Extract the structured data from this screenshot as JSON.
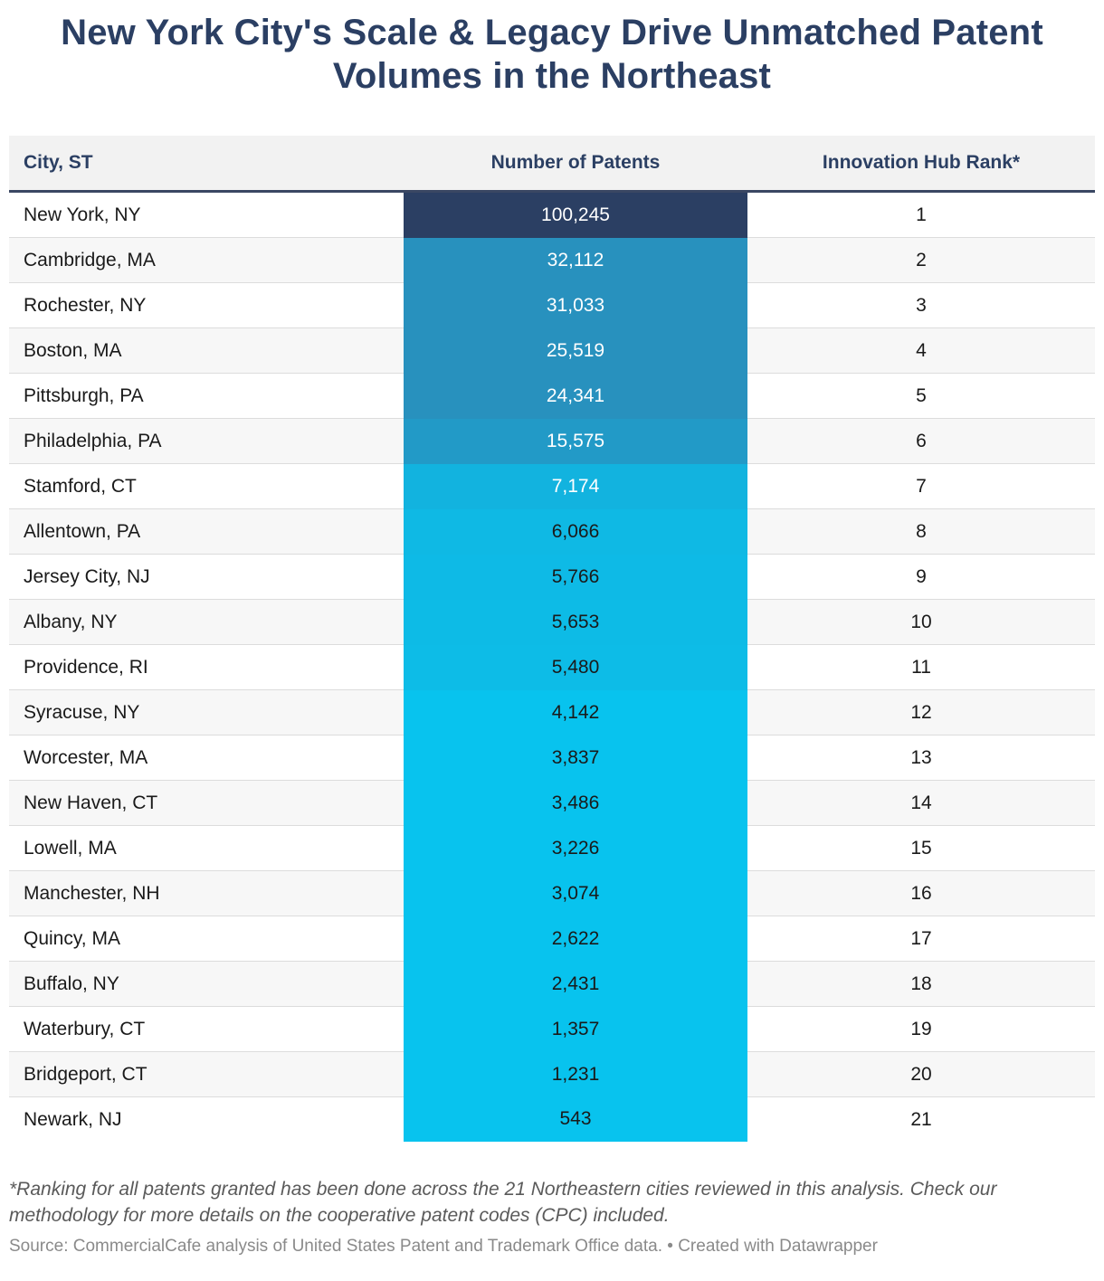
{
  "title": "New York City's Scale & Legacy Drive Unmatched Patent Volumes in the Northeast",
  "chart_data": {
    "type": "table",
    "columns": [
      "City, ST",
      "Number of Patents",
      "Innovation Hub Rank*"
    ],
    "rows": [
      {
        "city": "New York, NY",
        "patents": 100245,
        "patents_label": "100,245",
        "rank": "1"
      },
      {
        "city": "Cambridge, MA",
        "patents": 32112,
        "patents_label": "32,112",
        "rank": "2"
      },
      {
        "city": "Rochester, NY",
        "patents": 31033,
        "patents_label": "31,033",
        "rank": "3"
      },
      {
        "city": "Boston, MA",
        "patents": 25519,
        "patents_label": "25,519",
        "rank": "4"
      },
      {
        "city": "Pittsburgh, PA",
        "patents": 24341,
        "patents_label": "24,341",
        "rank": "5"
      },
      {
        "city": "Philadelphia, PA",
        "patents": 15575,
        "patents_label": "15,575",
        "rank": "6"
      },
      {
        "city": "Stamford, CT",
        "patents": 7174,
        "patents_label": "7,174",
        "rank": "7"
      },
      {
        "city": "Allentown, PA",
        "patents": 6066,
        "patents_label": "6,066",
        "rank": "8"
      },
      {
        "city": "Jersey City, NJ",
        "patents": 5766,
        "patents_label": "5,766",
        "rank": "9"
      },
      {
        "city": "Albany, NY",
        "patents": 5653,
        "patents_label": "5,653",
        "rank": "10"
      },
      {
        "city": "Providence, RI",
        "patents": 5480,
        "patents_label": "5,480",
        "rank": "11"
      },
      {
        "city": "Syracuse, NY",
        "patents": 4142,
        "patents_label": "4,142",
        "rank": "12"
      },
      {
        "city": "Worcester, MA",
        "patents": 3837,
        "patents_label": "3,837",
        "rank": "13"
      },
      {
        "city": "New Haven, CT",
        "patents": 3486,
        "patents_label": "3,486",
        "rank": "14"
      },
      {
        "city": "Lowell, MA",
        "patents": 3226,
        "patents_label": "3,226",
        "rank": "15"
      },
      {
        "city": "Manchester, NH",
        "patents": 3074,
        "patents_label": "3,074",
        "rank": "16"
      },
      {
        "city": "Quincy, MA",
        "patents": 2622,
        "patents_label": "2,622",
        "rank": "17"
      },
      {
        "city": "Buffalo, NY",
        "patents": 2431,
        "patents_label": "2,431",
        "rank": "18"
      },
      {
        "city": "Waterbury, CT",
        "patents": 1357,
        "patents_label": "1,357",
        "rank": "19"
      },
      {
        "city": "Bridgeport, CT",
        "patents": 1231,
        "patents_label": "1,231",
        "rank": "20"
      },
      {
        "city": "Newark, NJ",
        "patents": 543,
        "patents_label": "543",
        "rank": "21"
      }
    ],
    "color_scale": {
      "high": "#2b3f63",
      "mid": "#2891be",
      "low": "#08c3ee"
    }
  },
  "notes": "*Ranking for all patents granted has been done across the 21 Northeastern cities reviewed in this analysis. Check our methodology for more details on the cooperative patent codes (CPC) included.",
  "source": "Source: CommercialCafe analysis of United States Patent and Trademark Office data. • Created with Datawrapper"
}
